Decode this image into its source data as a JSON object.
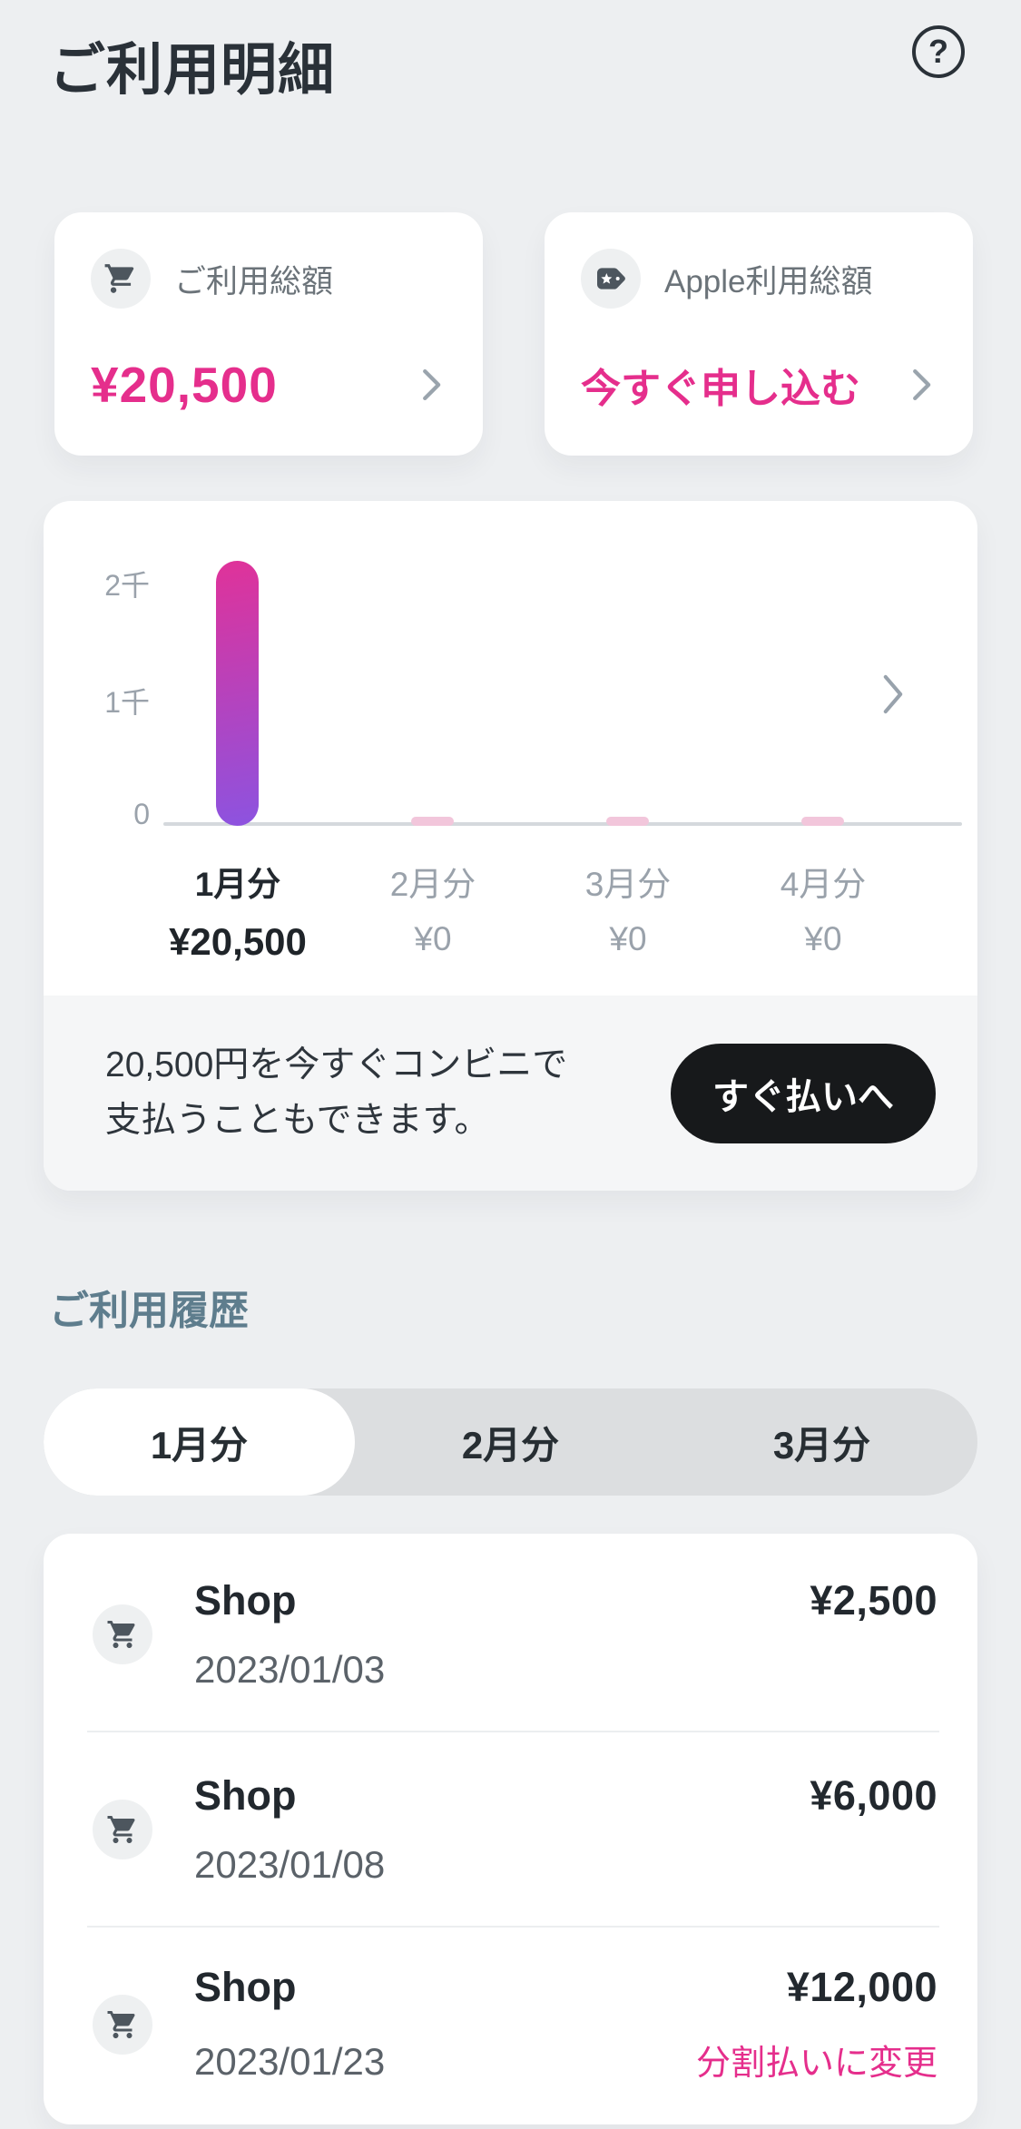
{
  "header": {
    "title": "ご利用明細",
    "help_label": "?"
  },
  "summary_cards": {
    "total": {
      "icon": "cart-icon",
      "label": "ご利用総額",
      "amount": "¥20,500"
    },
    "apple": {
      "icon": "tag-icon",
      "label": "Apple利用総額",
      "action_label": "今すぐ申し込む"
    }
  },
  "chart_data": {
    "type": "bar",
    "categories": [
      "1月分",
      "2月分",
      "3月分",
      "4月分"
    ],
    "values": [
      20500,
      0,
      0,
      0
    ],
    "value_labels": [
      "¥20,500",
      "¥0",
      "¥0",
      "¥0"
    ],
    "highlighted_category_index": 0,
    "y_ticks": [
      "2千",
      "1千",
      "0"
    ],
    "y_axis_max": 2000,
    "grid": false,
    "legend": false,
    "bar_gradient_top": "#e03299",
    "bar_gradient_bottom": "#8c53e0",
    "zero_bar_color": "#f2c6db"
  },
  "pay_notice": {
    "line1": "20,500円を今すぐコンビニで",
    "line2": "支払うこともできます。",
    "button_label": "すぐ払いへ"
  },
  "history": {
    "section_title": "ご利用履歴",
    "tabs": [
      {
        "label": "1月分",
        "active": true
      },
      {
        "label": "2月分",
        "active": false
      },
      {
        "label": "3月分",
        "active": false
      }
    ],
    "transactions": [
      {
        "icon": "cart-icon",
        "name": "Shop",
        "date": "2023/01/03",
        "amount": "¥2,500",
        "action_label": ""
      },
      {
        "icon": "cart-icon",
        "name": "Shop",
        "date": "2023/01/08",
        "amount": "¥6,000",
        "action_label": ""
      },
      {
        "icon": "cart-icon",
        "name": "Shop",
        "date": "2023/01/23",
        "amount": "¥12,000",
        "action_label": "分割払いに変更"
      }
    ]
  },
  "colors": {
    "accent_pink": "#e52e8c",
    "section_teal": "#5e7d8d",
    "button_black": "#17191b",
    "page_bg": "#edeff1"
  }
}
